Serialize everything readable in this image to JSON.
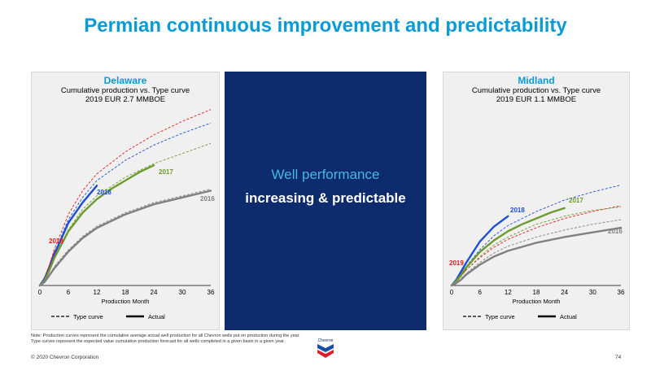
{
  "title": "Permian continuous improvement and predictability",
  "center": {
    "line1": "Well performance",
    "line2": "increasing & predictable"
  },
  "note": "Note: Production curves represent the cumulative average actual well production for all Chevron wells put on production during the year.",
  "note2": "Type curves represent the expected value cumulative production forecast for all wells completed in a given basin in a given year.",
  "copyright": "© 2020 Chevron Corporation",
  "page_number": "74",
  "logo_text": "Chevron",
  "colors": {
    "title": "#0a9bd6",
    "center_bg": "#0e2b6e",
    "center_line1": "#46b7e6",
    "y2019": "#e41b1b",
    "y2018": "#1d4fd6",
    "y2017": "#6f9a2e",
    "y2016": "#808080"
  },
  "chart_data": [
    {
      "type": "line",
      "basin": "Delaware",
      "title": "Cumulative production vs. Type curve",
      "subtitle": "2019 EUR 2.7 MMBOE",
      "xlabel": "Production Month",
      "ylabel": "",
      "xticks": [
        "0",
        "6",
        "12",
        "18",
        "24",
        "30",
        "36"
      ],
      "xlim": [
        0,
        36
      ],
      "ylim": [
        0,
        100
      ],
      "grid": false,
      "legend": {
        "position": "bottom",
        "items": [
          "Type curve",
          "Actual"
        ]
      },
      "series": [
        {
          "name": "2019",
          "color": "#e41b1b",
          "style": "type",
          "x": [
            0,
            1,
            2,
            3,
            6,
            9,
            12,
            18,
            24,
            30,
            36
          ],
          "y": [
            0,
            5,
            12,
            21,
            42,
            56,
            66,
            79,
            89,
            97,
            104
          ]
        },
        {
          "name": "2019",
          "color": "#e41b1b",
          "style": "actual",
          "x": [
            0,
            1,
            2,
            3,
            4
          ],
          "y": [
            0,
            4,
            11,
            19,
            24
          ]
        },
        {
          "name": "2018",
          "color": "#1d4fd6",
          "style": "type",
          "x": [
            0,
            1,
            2,
            3,
            6,
            9,
            12,
            18,
            24,
            30,
            36
          ],
          "y": [
            0,
            4,
            11,
            19,
            39,
            52,
            62,
            74,
            83,
            90,
            96
          ]
        },
        {
          "name": "2018",
          "color": "#1d4fd6",
          "style": "actual",
          "x": [
            0,
            1,
            2,
            3,
            6,
            9,
            12
          ],
          "y": [
            0,
            4,
            10,
            18,
            37,
            49,
            59
          ]
        },
        {
          "name": "2017",
          "color": "#6f9a2e",
          "style": "type",
          "x": [
            0,
            1,
            2,
            3,
            6,
            9,
            12,
            18,
            24,
            30,
            36
          ],
          "y": [
            0,
            3,
            9,
            16,
            33,
            45,
            53,
            64,
            72,
            78,
            84
          ]
        },
        {
          "name": "2017",
          "color": "#6f9a2e",
          "style": "actual",
          "x": [
            0,
            1,
            2,
            3,
            6,
            9,
            12,
            15,
            18,
            21,
            24
          ],
          "y": [
            0,
            3,
            9,
            16,
            32,
            43,
            51,
            57,
            62,
            67,
            71
          ]
        },
        {
          "name": "2016",
          "color": "#808080",
          "style": "type",
          "x": [
            0,
            1,
            2,
            3,
            6,
            9,
            12,
            18,
            24,
            30,
            36
          ],
          "y": [
            0,
            2,
            6,
            11,
            21,
            29,
            35,
            43,
            49,
            53,
            57
          ]
        },
        {
          "name": "2016",
          "color": "#808080",
          "style": "actual",
          "x": [
            0,
            1,
            2,
            3,
            6,
            9,
            12,
            18,
            24,
            30,
            36
          ],
          "y": [
            0,
            2,
            6,
            10,
            20,
            28,
            34,
            42,
            48,
            52,
            56
          ]
        }
      ]
    },
    {
      "type": "line",
      "basin": "Midland",
      "title": "Cumulative production vs. Type curve",
      "subtitle": "2019 EUR 1.1 MMBOE",
      "xlabel": "Production Month",
      "ylabel": "",
      "xticks": [
        "0",
        "6",
        "12",
        "18",
        "24",
        "30",
        "36"
      ],
      "xlim": [
        0,
        36
      ],
      "ylim": [
        0,
        100
      ],
      "grid": false,
      "legend": {
        "position": "bottom",
        "items": [
          "Type curve",
          "Actual"
        ]
      },
      "series": [
        {
          "name": "2019",
          "color": "#e41b1b",
          "style": "type",
          "x": [
            0,
            1,
            2,
            3,
            6,
            9,
            12,
            18,
            24,
            30,
            36
          ],
          "y": [
            0,
            3,
            8,
            13,
            24,
            33,
            40,
            50,
            58,
            64,
            69
          ]
        },
        {
          "name": "2019",
          "color": "#e41b1b",
          "style": "actual",
          "x": [
            0,
            1,
            2,
            3
          ],
          "y": [
            0,
            4,
            9,
            14
          ]
        },
        {
          "name": "2018",
          "color": "#1d4fd6",
          "style": "type",
          "x": [
            0,
            1,
            2,
            3,
            6,
            9,
            12,
            18,
            24,
            30,
            36
          ],
          "y": [
            0,
            4,
            10,
            16,
            31,
            43,
            52,
            64,
            74,
            81,
            87
          ]
        },
        {
          "name": "2018",
          "color": "#1d4fd6",
          "style": "actual",
          "x": [
            0,
            1,
            2,
            3,
            6,
            9,
            12
          ],
          "y": [
            0,
            5,
            12,
            19,
            38,
            51,
            60
          ]
        },
        {
          "name": "2017",
          "color": "#6f9a2e",
          "style": "type",
          "x": [
            0,
            1,
            2,
            3,
            6,
            9,
            12,
            18,
            24,
            30,
            36
          ],
          "y": [
            0,
            3,
            8,
            13,
            25,
            35,
            42,
            53,
            60,
            65,
            68
          ]
        },
        {
          "name": "2017",
          "color": "#6f9a2e",
          "style": "actual",
          "x": [
            0,
            1,
            2,
            3,
            6,
            9,
            12,
            15,
            18,
            21,
            24
          ],
          "y": [
            0,
            4,
            9,
            15,
            29,
            39,
            47,
            53,
            58,
            63,
            67
          ]
        },
        {
          "name": "2016",
          "color": "#808080",
          "style": "type",
          "x": [
            0,
            1,
            2,
            3,
            6,
            9,
            12,
            18,
            24,
            30,
            36
          ],
          "y": [
            0,
            2,
            6,
            10,
            20,
            28,
            34,
            42,
            48,
            53,
            57
          ]
        },
        {
          "name": "2016",
          "color": "#808080",
          "style": "actual",
          "x": [
            0,
            1,
            2,
            3,
            6,
            9,
            12,
            18,
            24,
            30,
            36
          ],
          "y": [
            0,
            2,
            5,
            9,
            18,
            25,
            30,
            37,
            42,
            46,
            50
          ]
        }
      ]
    }
  ]
}
